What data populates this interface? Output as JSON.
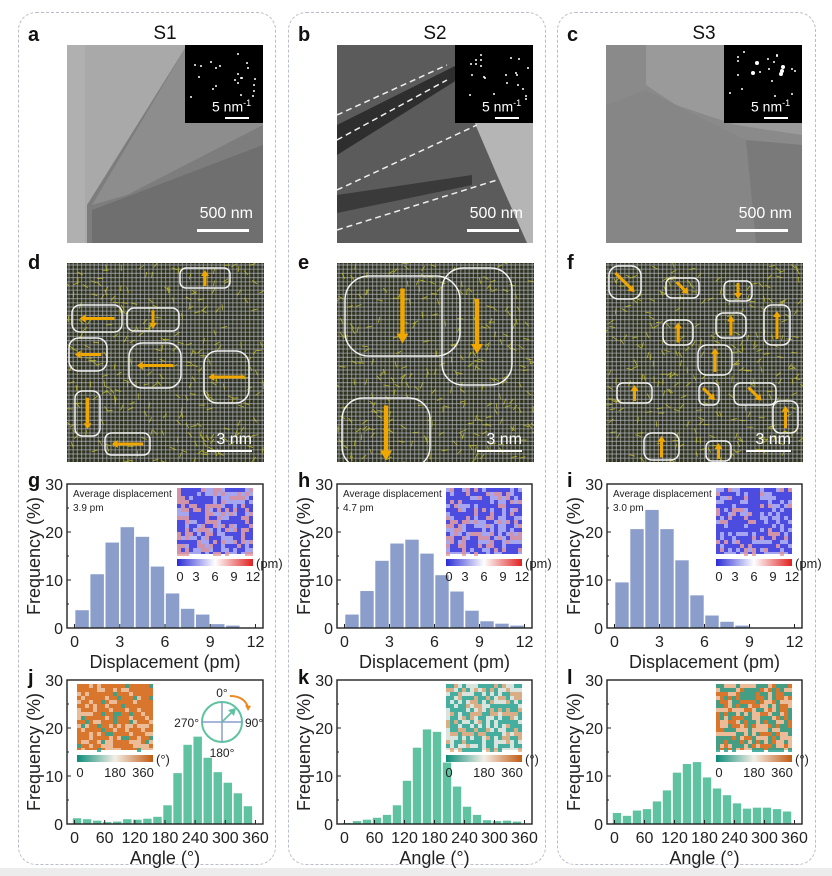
{
  "panels": [
    {
      "sample": "S1",
      "labels": {
        "tem": "a",
        "map": "d",
        "disp": "g",
        "angle": "j"
      },
      "tem_scale": "500 nm",
      "saed_scale": "5 nm",
      "saed_sup": "-1",
      "map_scale": "3 nm",
      "disp_note_title": "Average displacement",
      "disp_note_value": "3.9 pm",
      "disp_cbar_unit": "(pm)",
      "angle_cbar_unit": "(°)"
    },
    {
      "sample": "S2",
      "labels": {
        "tem": "b",
        "map": "e",
        "disp": "h",
        "angle": "k"
      },
      "tem_scale": "500 nm",
      "saed_scale": "5 nm",
      "saed_sup": "-1",
      "map_scale": "3 nm",
      "disp_note_title": "Average displacement",
      "disp_note_value": "4.7 pm",
      "disp_cbar_unit": "(pm)",
      "angle_cbar_unit": "(°)"
    },
    {
      "sample": "S3",
      "labels": {
        "tem": "c",
        "map": "f",
        "disp": "i",
        "angle": "l"
      },
      "tem_scale": "500 nm",
      "saed_scale": "5 nm",
      "saed_sup": "-1",
      "map_scale": "3 nm",
      "disp_note_title": "Average displacement",
      "disp_note_value": "3.0 pm",
      "disp_cbar_unit": "(pm)",
      "angle_cbar_unit": "(°)"
    }
  ],
  "compass": {
    "top": "0°",
    "right": "90°",
    "bottom": "180°",
    "left": "270°"
  },
  "disp_cbar_ticks": [
    "0",
    "3",
    "6",
    "9",
    "12"
  ],
  "angle_cbar_ticks": [
    "0",
    "180",
    "360"
  ],
  "colors": {
    "disp_bar": "#8a9dcb",
    "angle_bar": "#5fc2a0",
    "compass": "#5fc2a0",
    "compass_cross": "#8a9dcb",
    "arrow": "#f0a800",
    "panel_border": "#b9bccb",
    "disp_cmap": [
      "#2b2bd6",
      "#ffffff",
      "#e02020"
    ],
    "angle_cmap": [
      "#0c8c7a",
      "#f3efe6",
      "#c25a12"
    ]
  },
  "chart_data": [
    {
      "id": "g",
      "type": "bar",
      "sample": "S1",
      "xlabel": "Displacement (pm)",
      "ylabel": "Frequency (%)",
      "xlim": [
        -0.5,
        12.5
      ],
      "ylim": [
        0,
        30
      ],
      "xticks": [
        0,
        3,
        6,
        9,
        12
      ],
      "yticks": [
        0,
        10,
        20,
        30
      ],
      "x": [
        0.5,
        1.5,
        2.5,
        3.5,
        4.5,
        5.5,
        6.5,
        7.5,
        8.5,
        9.5,
        10.5
      ],
      "values": [
        3.7,
        11.2,
        17.8,
        21.0,
        19.0,
        12.8,
        7.2,
        4.0,
        2.8,
        0.8,
        0.5
      ]
    },
    {
      "id": "h",
      "type": "bar",
      "sample": "S2",
      "xlabel": "Displacement (pm)",
      "ylabel": "Frequency (%)",
      "xlim": [
        -0.5,
        12.5
      ],
      "ylim": [
        0,
        30
      ],
      "xticks": [
        0,
        3,
        6,
        9,
        12
      ],
      "yticks": [
        0,
        10,
        20,
        30
      ],
      "x": [
        0.5,
        1.5,
        2.5,
        3.5,
        4.5,
        5.5,
        6.5,
        7.5,
        8.5,
        9.5,
        10.5,
        11.5
      ],
      "values": [
        2.8,
        7.7,
        14.0,
        17.6,
        18.4,
        15.5,
        11.0,
        7.6,
        3.6,
        1.4,
        0.9,
        0.5
      ]
    },
    {
      "id": "i",
      "type": "bar",
      "sample": "S3",
      "xlabel": "Displacement (pm)",
      "ylabel": "Frequency (%)",
      "xlim": [
        -0.5,
        12.5
      ],
      "ylim": [
        0,
        30
      ],
      "xticks": [
        0,
        3,
        6,
        9,
        12
      ],
      "yticks": [
        0,
        10,
        20,
        30
      ],
      "x": [
        0.5,
        1.5,
        2.5,
        3.5,
        4.5,
        5.5,
        6.5,
        7.5,
        8.5
      ],
      "values": [
        9.5,
        20.6,
        24.6,
        20.6,
        14.1,
        6.8,
        2.6,
        1.3,
        0.5
      ]
    },
    {
      "id": "j",
      "type": "bar",
      "sample": "S1",
      "xlabel": "Angle (°)",
      "ylabel": "Frequency (%)",
      "xlim": [
        -15,
        375
      ],
      "ylim": [
        0,
        30
      ],
      "xticks": [
        0,
        60,
        120,
        180,
        240,
        300,
        360
      ],
      "yticks": [
        0,
        10,
        20,
        30
      ],
      "x": [
        5,
        25,
        45,
        65,
        85,
        105,
        125,
        145,
        165,
        185,
        205,
        225,
        245,
        265,
        285,
        305,
        325,
        345
      ],
      "values": [
        1.2,
        1.0,
        0.7,
        0.4,
        0.5,
        1.0,
        0.9,
        1.1,
        1.5,
        3.9,
        10.6,
        16.5,
        18.2,
        13.8,
        10.8,
        8.6,
        6.4,
        3.7
      ]
    },
    {
      "id": "k",
      "type": "bar",
      "sample": "S2",
      "xlabel": "Angle (°)",
      "ylabel": "Frequency (%)",
      "xlim": [
        -15,
        375
      ],
      "ylim": [
        0,
        30
      ],
      "xticks": [
        0,
        60,
        120,
        180,
        240,
        300,
        360
      ],
      "yticks": [
        0,
        10,
        20,
        30
      ],
      "x": [
        5,
        25,
        45,
        65,
        85,
        105,
        125,
        145,
        165,
        185,
        205,
        225,
        245,
        265,
        285,
        305,
        325,
        345
      ],
      "values": [
        0.2,
        0.6,
        0.9,
        1.3,
        1.9,
        3.9,
        9.0,
        15.9,
        19.7,
        19.2,
        12.8,
        7.8,
        3.6,
        1.9,
        0.8,
        0.6,
        0.7,
        0.5
      ]
    },
    {
      "id": "l",
      "type": "bar",
      "sample": "S3",
      "xlabel": "Angle (°)",
      "ylabel": "Frequency (%)",
      "xlim": [
        -15,
        375
      ],
      "ylim": [
        0,
        30
      ],
      "xticks": [
        0,
        60,
        120,
        180,
        240,
        300,
        360
      ],
      "yticks": [
        0,
        10,
        20,
        30
      ],
      "x": [
        5,
        25,
        45,
        65,
        85,
        105,
        125,
        145,
        165,
        185,
        205,
        225,
        245,
        265,
        285,
        305,
        325,
        345
      ],
      "values": [
        2.3,
        1.7,
        2.8,
        3.1,
        4.7,
        7.0,
        10.7,
        12.5,
        12.9,
        9.7,
        7.4,
        6.0,
        4.3,
        3.2,
        3.4,
        3.4,
        3.1,
        2.6
      ]
    }
  ]
}
